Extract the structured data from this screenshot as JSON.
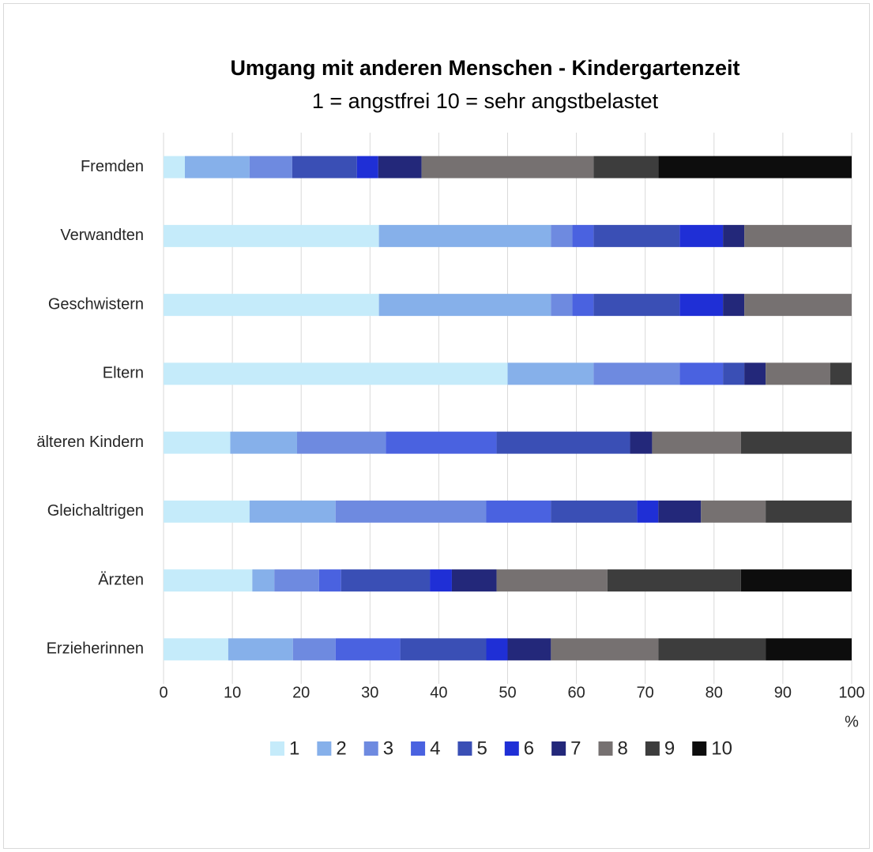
{
  "chart_data": {
    "type": "stacked-barh",
    "title": "Umgang mit anderen Menschen - Kindergartenzeit",
    "subtitle": "1 = angstfrei  10 = sehr angstbelastet",
    "xlabel": "%",
    "categories": [
      "Fremden",
      "Verwandten",
      "Geschwistern",
      "Eltern",
      "älteren Kindern",
      "Gleichaltrigen",
      "Ärzten",
      "Erzieherinnen"
    ],
    "series": [
      {
        "name": "1",
        "color": "#c5ebfa",
        "values": [
          3.1,
          31.3,
          31.3,
          50,
          9.7,
          12.5,
          12.9,
          9.4
        ]
      },
      {
        "name": "2",
        "color": "#86b0ea",
        "values": [
          9.4,
          25,
          25,
          12.5,
          9.7,
          12.5,
          3.2,
          9.4
        ]
      },
      {
        "name": "3",
        "color": "#6e8ae0",
        "values": [
          6.2,
          3.1,
          3.1,
          12.5,
          12.9,
          21.9,
          6.5,
          6.2
        ]
      },
      {
        "name": "4",
        "color": "#4a62e0",
        "values": [
          0,
          3.1,
          3.1,
          6.3,
          16.1,
          9.4,
          3.2,
          9.4
        ]
      },
      {
        "name": "5",
        "color": "#3a4fb5",
        "values": [
          9.4,
          12.5,
          12.5,
          3.1,
          19.4,
          12.5,
          12.9,
          12.5
        ]
      },
      {
        "name": "6",
        "color": "#1f2fd6",
        "values": [
          3.1,
          6.3,
          6.3,
          0,
          0,
          3.1,
          3.2,
          3.1
        ]
      },
      {
        "name": "7",
        "color": "#23287a",
        "values": [
          6.3,
          3.1,
          3.1,
          3.1,
          3.2,
          6.2,
          6.5,
          6.3
        ]
      },
      {
        "name": "8",
        "color": "#767171",
        "values": [
          25,
          15.6,
          15.6,
          9.4,
          12.9,
          9.4,
          16.1,
          15.6
        ]
      },
      {
        "name": "9",
        "color": "#3d3d3d",
        "values": [
          9.4,
          0,
          0,
          3.1,
          16.1,
          12.5,
          19.4,
          15.6
        ]
      },
      {
        "name": "10",
        "color": "#0d0d0d",
        "values": [
          28.1,
          0,
          0,
          0,
          0,
          0,
          16.1,
          12.5
        ]
      }
    ],
    "xlim": [
      0,
      100
    ],
    "xticks": [
      0,
      10,
      20,
      30,
      40,
      50,
      60,
      70,
      80,
      90,
      100
    ],
    "grid": true,
    "legend": "bottom"
  }
}
